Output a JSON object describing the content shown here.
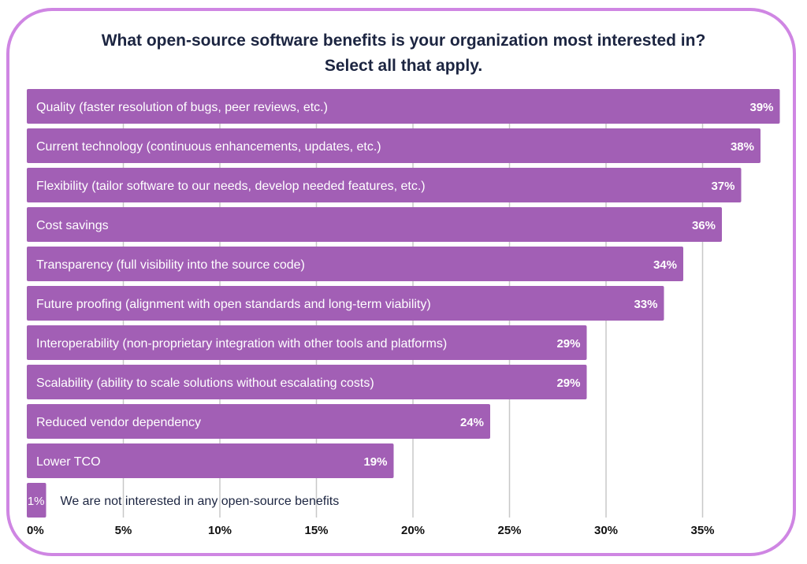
{
  "chart_data": {
    "type": "bar",
    "orientation": "horizontal",
    "title": "What open-source software benefits is your organization most interested in?",
    "subtitle": "Select all that apply.",
    "categories": [
      "Quality (faster resolution of bugs, peer reviews, etc.)",
      "Current technology (continuous enhancements, updates, etc.)",
      "Flexibility (tailor software to our needs, develop needed features, etc.)",
      "Cost savings",
      "Transparency (full visibility into the source code)",
      "Future proofing (alignment with open standards and long-term viability)",
      "Interoperability (non-proprietary integration with other tools and platforms)",
      "Scalability (ability to scale solutions without escalating costs)",
      "Reduced vendor dependency",
      "Lower TCO",
      "We are not interested in any open-source benefits"
    ],
    "values": [
      39,
      38,
      37,
      36,
      34,
      33,
      29,
      29,
      24,
      19,
      1
    ],
    "data_labels": [
      "39%",
      "38%",
      "37%",
      "36%",
      "34%",
      "33%",
      "29%",
      "29%",
      "24%",
      "19%",
      "1%"
    ],
    "xlim": [
      0,
      39
    ],
    "x_ticks": [
      0,
      5,
      10,
      15,
      20,
      25,
      30,
      35
    ],
    "x_tick_labels": [
      "0%",
      "5%",
      "10%",
      "15%",
      "20%",
      "25%",
      "30%",
      "35%"
    ],
    "grid": "vertical",
    "legend": "none",
    "bar_color": "#a25fb5",
    "frame_color": "#cf86e3",
    "title_color": "#1c2541"
  }
}
